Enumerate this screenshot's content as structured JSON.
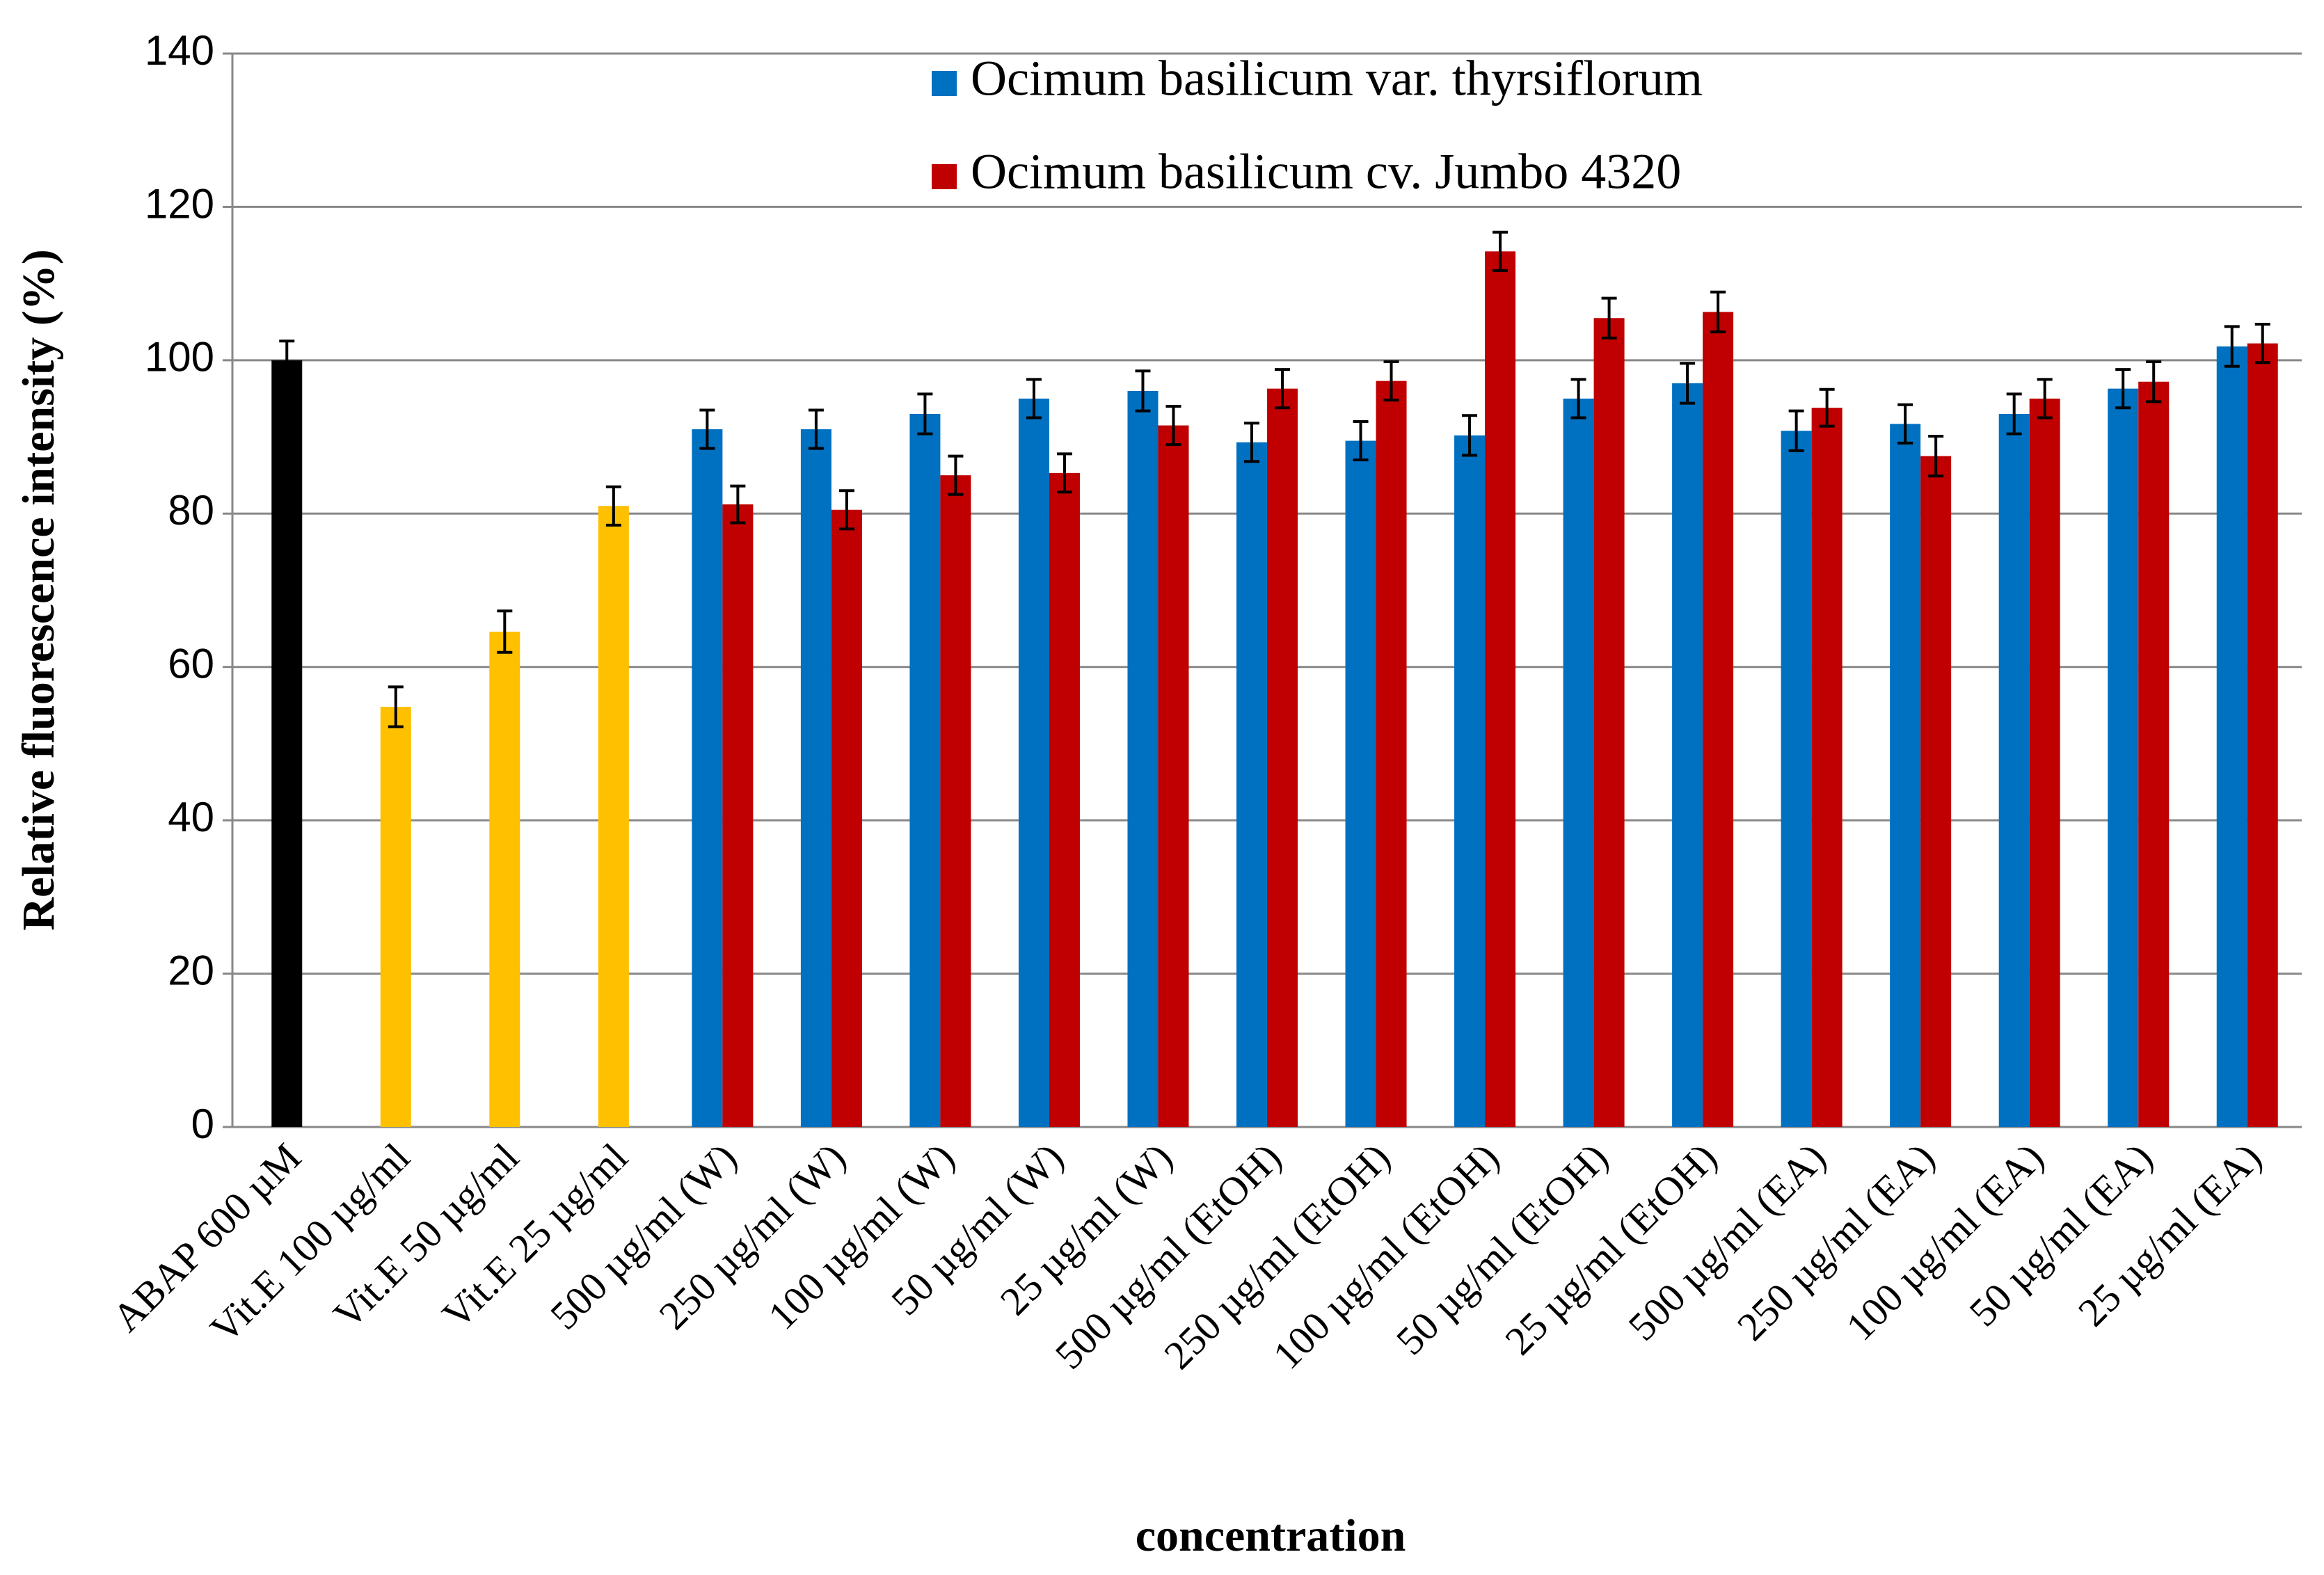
{
  "chart_data": {
    "type": "bar",
    "y_label": "Relative fluorescence intensity (%)",
    "x_label": "concentration",
    "categories": [
      "ABAP 600 µM",
      "Vit.E 100 µg/ml",
      "Vit.E 50 µg/ml",
      "Vit.E 25 µg/ml",
      "500 µg/ml (W)",
      "250 µg/ml (W)",
      "100 µg/ml (W)",
      "50 µg/ml (W)",
      "25 µg/ml (W)",
      "500 µg/ml (EtOH)",
      "250 µg/ml (EtOH)",
      "100 µg/ml (EtOH)",
      "50 µg/ml (EtOH)",
      "25 µg/ml (EtOH)",
      "500 µg/ml (EA)",
      "250 µg/ml (EA)",
      "100 µg/ml (EA)",
      "50 µg/ml (EA)",
      "25 µg/ml (EA)"
    ],
    "series": [
      {
        "name": "Ocimum basilicum var. thyrsiflorum",
        "color": "#0070c0",
        "values": [
          null,
          null,
          null,
          null,
          91,
          91,
          93,
          95,
          96,
          89.3,
          89.5,
          90.2,
          95,
          97,
          90.8,
          91.7,
          93,
          96.3,
          101.8
        ],
        "errors": [
          null,
          null,
          null,
          null,
          2.5,
          2.5,
          2.6,
          2.5,
          2.6,
          2.5,
          2.5,
          2.6,
          2.5,
          2.6,
          2.6,
          2.5,
          2.6,
          2.5,
          2.6
        ]
      },
      {
        "name": "Ocimum basilicum cv. Jumbo 4320",
        "color": "#c00000",
        "values": [
          null,
          null,
          null,
          null,
          81.2,
          80.5,
          85,
          85.3,
          91.5,
          96.3,
          97.3,
          114.2,
          105.5,
          106.3,
          93.8,
          87.5,
          95,
          97.2,
          102.2
        ],
        "errors": [
          null,
          null,
          null,
          null,
          2.4,
          2.5,
          2.5,
          2.5,
          2.5,
          2.5,
          2.5,
          2.5,
          2.6,
          2.6,
          2.4,
          2.6,
          2.5,
          2.6,
          2.5
        ]
      },
      {
        "colors": [
          "#000000",
          "#ffc000",
          "#ffc000",
          "#ffc000",
          null,
          null,
          null,
          null,
          null,
          null,
          null,
          null,
          null,
          null,
          null,
          null,
          null,
          null,
          null
        ],
        "values": [
          100,
          54.8,
          64.6,
          81,
          null,
          null,
          null,
          null,
          null,
          null,
          null,
          null,
          null,
          null,
          null,
          null,
          null,
          null,
          null
        ],
        "errors": [
          2.5,
          2.6,
          2.7,
          2.5,
          null,
          null,
          null,
          null,
          null,
          null,
          null,
          null,
          null,
          null,
          null,
          null,
          null,
          null,
          null
        ]
      }
    ],
    "ylim": [
      0,
      140
    ],
    "yticks": [
      0,
      20,
      40,
      60,
      80,
      100,
      120,
      140
    ],
    "grid": true,
    "legend": "top-center"
  }
}
